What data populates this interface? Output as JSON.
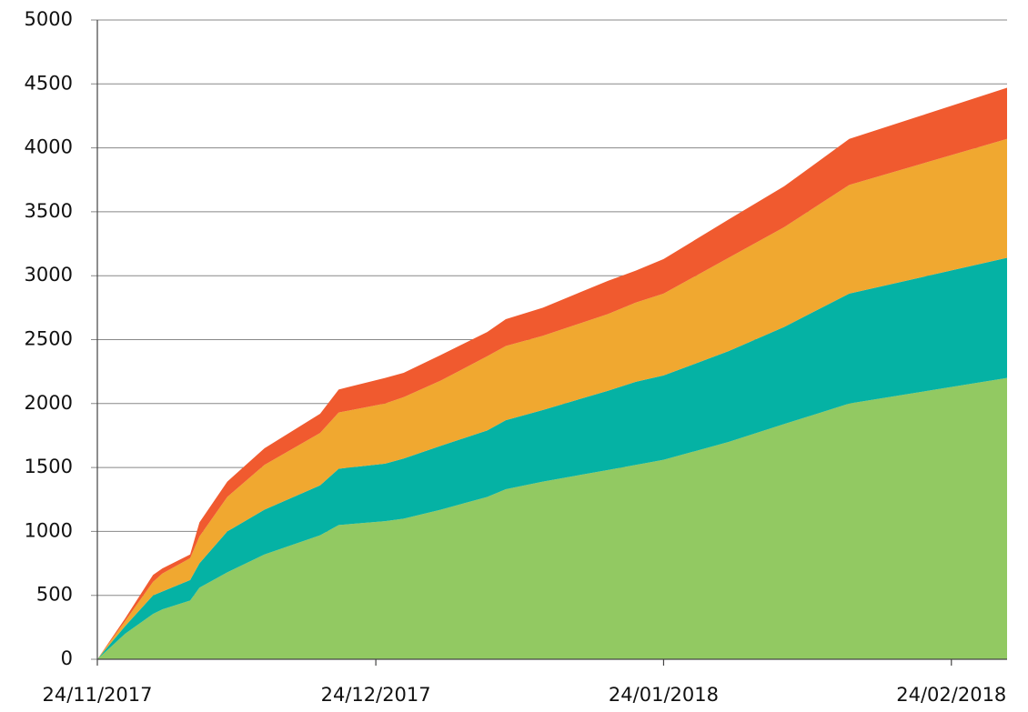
{
  "chart_data": {
    "type": "stacked_area",
    "x": [
      "2017-11-24",
      "2017-11-27",
      "2017-11-30",
      "2017-12-01",
      "2017-12-04",
      "2017-12-05",
      "2017-12-08",
      "2017-12-12",
      "2017-12-18",
      "2017-12-20",
      "2017-12-25",
      "2017-12-27",
      "2017-12-31",
      "2018-01-05",
      "2018-01-07",
      "2018-01-11",
      "2018-01-18",
      "2018-01-21",
      "2018-01-24",
      "2018-01-31",
      "2018-02-06",
      "2018-02-13",
      "2018-03-02"
    ],
    "series": [
      {
        "color": "#92c962",
        "values": [
          0,
          200,
          355,
          390,
          460,
          560,
          680,
          820,
          970,
          1050,
          1080,
          1100,
          1170,
          1270,
          1330,
          1390,
          1480,
          1520,
          1560,
          1700,
          1840,
          2000,
          2200
        ]
      },
      {
        "color": "#05b2a4",
        "values": [
          0,
          60,
          145,
          140,
          160,
          190,
          320,
          350,
          390,
          440,
          450,
          470,
          500,
          520,
          540,
          560,
          620,
          650,
          660,
          710,
          760,
          860,
          940
        ]
      },
      {
        "color": "#f0a830",
        "values": [
          0,
          40,
          105,
          140,
          170,
          210,
          270,
          350,
          410,
          440,
          470,
          480,
          510,
          580,
          580,
          580,
          600,
          620,
          640,
          730,
          780,
          850,
          930
        ]
      },
      {
        "color": "#f05a2f",
        "values": [
          0,
          20,
          55,
          40,
          30,
          110,
          120,
          130,
          150,
          180,
          200,
          190,
          200,
          190,
          210,
          220,
          260,
          250,
          270,
          300,
          320,
          360,
          400
        ]
      }
    ],
    "xlim": [
      "2017-11-24",
      "2018-03-02"
    ],
    "xticks": [
      {
        "value": "2017-11-24",
        "label": "24/11/2017"
      },
      {
        "value": "2017-12-24",
        "label": "24/12/2017"
      },
      {
        "value": "2018-01-24",
        "label": "24/01/2018"
      },
      {
        "value": "2018-02-24",
        "label": "24/02/2018"
      }
    ],
    "ylim": [
      0,
      5000
    ],
    "yticks": [
      0,
      500,
      1000,
      1500,
      2000,
      2500,
      3000,
      3500,
      4000,
      4500,
      5000
    ],
    "grid": true
  }
}
